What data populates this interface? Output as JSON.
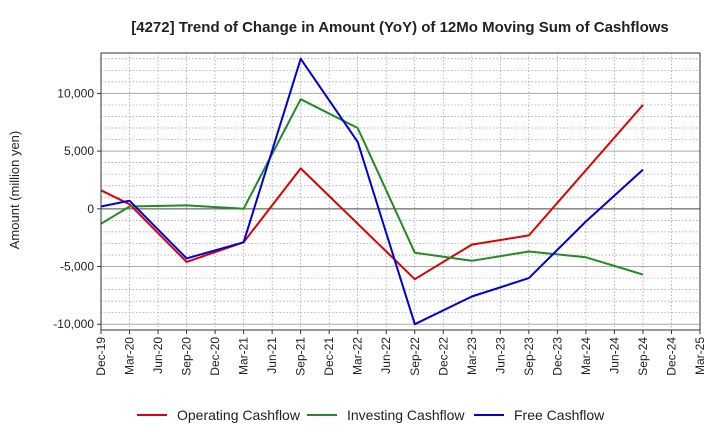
{
  "chart_data": {
    "type": "line",
    "title": "[4272]  Trend of Change in Amount (YoY) of 12Mo Moving Sum of Cashflows",
    "xlabel": "",
    "ylabel": "Amount (million yen)",
    "ylim": [
      -10500,
      13500
    ],
    "yticks": [
      -10000,
      -5000,
      0,
      5000,
      10000
    ],
    "ytick_labels": [
      "-10,000",
      "-5,000",
      "0",
      "5,000",
      "10,000"
    ],
    "grid": true,
    "legend_position": "bottom",
    "categories": [
      "Dec-19",
      "Mar-20",
      "Jun-20",
      "Sep-20",
      "Dec-20",
      "Mar-21",
      "Jun-21",
      "Sep-21",
      "Dec-21",
      "Mar-22",
      "Jun-22",
      "Sep-22",
      "Dec-22",
      "Mar-23",
      "Jun-23",
      "Sep-23",
      "Dec-23",
      "Mar-24",
      "Jun-24",
      "Sep-24",
      "Dec-24",
      "Mar-25"
    ],
    "series": [
      {
        "name": "Operating Cashflow",
        "color": "#e00000",
        "values": [
          1600,
          400,
          null,
          -4600,
          null,
          -2900,
          null,
          3500,
          null,
          null,
          null,
          -6100,
          null,
          -3100,
          null,
          -2300,
          null,
          null,
          null,
          9000,
          null,
          null
        ]
      },
      {
        "name": "Investing Cashflow",
        "color": "#228b22",
        "values": [
          -1300,
          200,
          null,
          300,
          null,
          0,
          null,
          9500,
          null,
          7000,
          null,
          -3800,
          null,
          -4500,
          null,
          -3700,
          null,
          -4200,
          null,
          -5700,
          null,
          null
        ]
      },
      {
        "name": "Free Cashflow",
        "color": "#0000dd",
        "values": [
          200,
          700,
          null,
          -4300,
          null,
          -2900,
          null,
          13000,
          null,
          5800,
          null,
          -10000,
          null,
          -7600,
          null,
          -6000,
          null,
          -1100,
          null,
          3400,
          null,
          null
        ]
      }
    ]
  }
}
